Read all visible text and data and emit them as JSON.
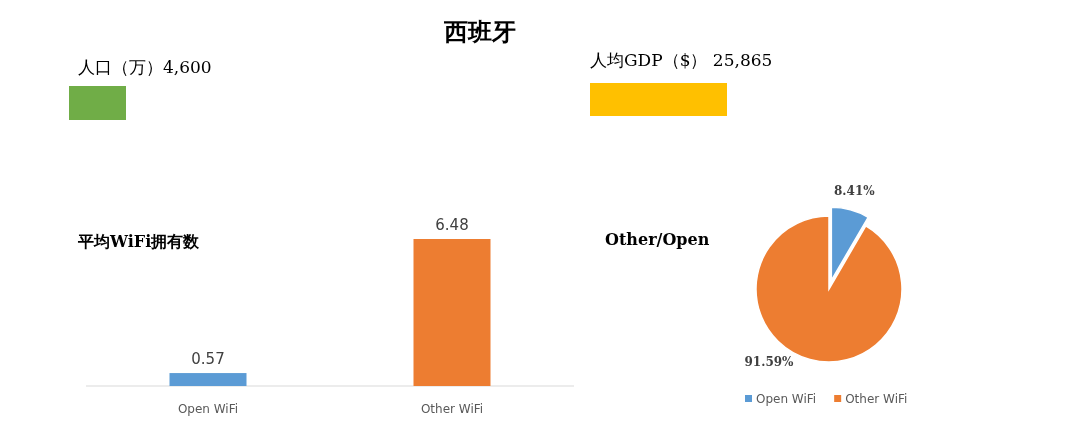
{
  "chart_data": [
    {
      "type": "other",
      "title": "西班牙"
    },
    {
      "type": "other",
      "title": "人口（万）4,600",
      "color": "#70ad47"
    },
    {
      "type": "other",
      "title": "人均GDP（$） 25,865",
      "color": "#ffc000"
    },
    {
      "type": "bar",
      "title": "平均WiFi拥有数",
      "categories": [
        "Open WiFi",
        "Other WiFi"
      ],
      "values": [
        0.57,
        6.48
      ],
      "colors": [
        "#5b9bd5",
        "#ed7d31"
      ],
      "data_labels": true
    },
    {
      "type": "pie",
      "title": "Other/Open",
      "categories": [
        "Open WiFi",
        "Other WiFi"
      ],
      "values": [
        8.41,
        91.59
      ],
      "value_labels": [
        "8.41%",
        "91.59%"
      ],
      "colors": [
        "#5b9bd5",
        "#ed7d31"
      ],
      "legend": "bottom"
    }
  ]
}
